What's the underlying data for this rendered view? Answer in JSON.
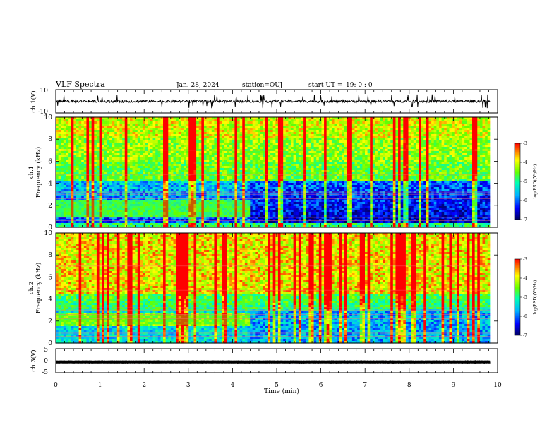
{
  "header": {
    "title": "VLF Spectra",
    "date": "Jan. 28, 2024",
    "station": "station=OUJ",
    "start_label": "start  UT  =",
    "start_time": "19: 0  : 0"
  },
  "chart_data": [
    {
      "type": "line",
      "name": "ch1-waveform",
      "ylabel": "ch.1(V)",
      "ylim": [
        -10,
        10
      ],
      "yticks": [
        "10",
        "-10"
      ],
      "xlim": [
        0,
        10
      ],
      "baseline": 0,
      "noise_amplitude": 2.2,
      "grid": false
    },
    {
      "type": "heatmap",
      "name": "ch1-spectrogram",
      "ylabel_top": "ch.1",
      "ylabel": "Frequency (kHz)",
      "ylim": [
        0,
        10
      ],
      "yticks": [
        "0",
        "2",
        "4",
        "6",
        "8",
        "10"
      ],
      "xlim": [
        0,
        10
      ],
      "data_extent_min": 9.83,
      "band_end_min": 4.4,
      "band_khz": [
        0.9,
        2.5
      ],
      "colorbar": {
        "label": "log(PSD)(V²/Hz)",
        "range": [
          -7,
          -3
        ],
        "ticks": [
          "-3",
          "-4",
          "-5",
          "-6",
          "-7"
        ]
      }
    },
    {
      "type": "heatmap",
      "name": "ch2-spectrogram",
      "ylabel_top": "ch.2",
      "ylabel": "Frequency (kHz)",
      "ylim": [
        0,
        10
      ],
      "yticks": [
        "0",
        "2",
        "4",
        "6",
        "8",
        "10"
      ],
      "xlim": [
        0,
        10
      ],
      "data_extent_min": 9.83,
      "band_end_min": 4.4,
      "band_khz": [
        1.6,
        2.6
      ],
      "colorbar": {
        "label": "log(PSD)(V²/Hz)",
        "range": [
          -7,
          -3
        ],
        "ticks": [
          "-3",
          "-4",
          "-5",
          "-6",
          "-7"
        ]
      }
    },
    {
      "type": "line",
      "name": "ch3-waveform",
      "ylabel": "ch.3(V)",
      "ylim": [
        -5,
        5
      ],
      "yticks": [
        "5",
        "0",
        "-5"
      ],
      "xlim": [
        0,
        10
      ],
      "baseline": -0.5,
      "noise_amplitude": 0.1,
      "grid": false
    }
  ],
  "xaxis": {
    "label": "Time  (min)",
    "ticks": [
      "0",
      "1",
      "2",
      "3",
      "4",
      "5",
      "6",
      "7",
      "8",
      "9",
      "10"
    ]
  },
  "colors": {
    "colormap": [
      "#000060",
      "#0000ff",
      "#00b4ff",
      "#00ffb4",
      "#64ff00",
      "#ffff00",
      "#ff0000"
    ]
  }
}
